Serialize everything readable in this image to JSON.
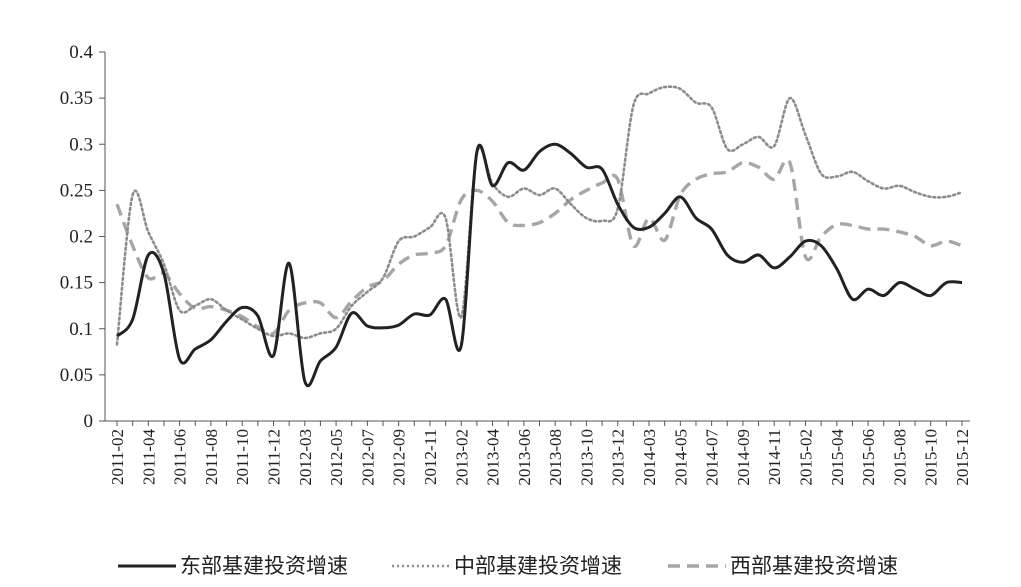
{
  "chart_data": {
    "type": "line",
    "title": "",
    "xlabel": "",
    "ylabel": "",
    "ylim": [
      0,
      0.4
    ],
    "yticks": [
      "0",
      "0.05",
      "0.1",
      "0.15",
      "0.2",
      "0.25",
      "0.3",
      "0.35",
      "0.4"
    ],
    "grid": false,
    "legend_position": "bottom",
    "x_tick_labels": [
      "2011-02",
      "2011-04",
      "2011-06",
      "2011-08",
      "2011-10",
      "2011-12",
      "2012-03",
      "2012-05",
      "2012-07",
      "2012-09",
      "2012-11",
      "2013-02",
      "2013-04",
      "2013-06",
      "2013-08",
      "2013-10",
      "2013-12",
      "2014-03",
      "2014-05",
      "2014-07",
      "2014-09",
      "2014-11",
      "2015-02",
      "2015-04",
      "2015-06",
      "2015-08",
      "2015-10",
      "2015-12"
    ],
    "x": [
      "2011-02",
      "2011-03",
      "2011-04",
      "2011-05",
      "2011-06",
      "2011-07",
      "2011-08",
      "2011-09",
      "2011-10",
      "2011-11",
      "2011-12",
      "2012-02",
      "2012-03",
      "2012-04",
      "2012-05",
      "2012-06",
      "2012-07",
      "2012-08",
      "2012-09",
      "2012-10",
      "2012-11",
      "2012-12",
      "2013-02",
      "2013-03",
      "2013-04",
      "2013-05",
      "2013-06",
      "2013-07",
      "2013-08",
      "2013-09",
      "2013-10",
      "2013-11",
      "2013-12",
      "2014-02",
      "2014-03",
      "2014-04",
      "2014-05",
      "2014-06",
      "2014-07",
      "2014-08",
      "2014-09",
      "2014-10",
      "2014-11",
      "2014-12",
      "2015-02",
      "2015-03",
      "2015-04",
      "2015-05",
      "2015-06",
      "2015-07",
      "2015-08",
      "2015-09",
      "2015-10",
      "2015-11",
      "2015-12"
    ],
    "series": [
      {
        "name": "东部基建投资增速",
        "style": "solid",
        "color": "#222222",
        "values": [
          0.092,
          0.11,
          0.18,
          0.16,
          0.067,
          0.078,
          0.088,
          0.108,
          0.123,
          0.114,
          0.071,
          0.171,
          0.043,
          0.065,
          0.08,
          0.117,
          0.103,
          0.101,
          0.104,
          0.116,
          0.115,
          0.132,
          0.082,
          0.292,
          0.255,
          0.28,
          0.272,
          0.292,
          0.3,
          0.29,
          0.275,
          0.273,
          0.235,
          0.21,
          0.21,
          0.225,
          0.243,
          0.22,
          0.208,
          0.18,
          0.172,
          0.18,
          0.166,
          0.178,
          0.195,
          0.19,
          0.165,
          0.132,
          0.143,
          0.136,
          0.15,
          0.143,
          0.136,
          0.15,
          0.15
        ]
      },
      {
        "name": "中部基建投资增速",
        "style": "dotted",
        "color": "#8c8c8c",
        "values": [
          0.083,
          0.245,
          0.205,
          0.17,
          0.12,
          0.125,
          0.132,
          0.12,
          0.11,
          0.1,
          0.092,
          0.095,
          0.09,
          0.095,
          0.1,
          0.125,
          0.14,
          0.155,
          0.195,
          0.2,
          0.21,
          0.22,
          0.113,
          0.29,
          0.257,
          0.243,
          0.252,
          0.245,
          0.252,
          0.235,
          0.22,
          0.217,
          0.23,
          0.342,
          0.355,
          0.362,
          0.36,
          0.345,
          0.34,
          0.295,
          0.3,
          0.308,
          0.298,
          0.35,
          0.31,
          0.268,
          0.265,
          0.27,
          0.26,
          0.252,
          0.255,
          0.248,
          0.243,
          0.243,
          0.248
        ]
      },
      {
        "name": "西部基建投资增速",
        "style": "dashed",
        "color": "#a6a6a6",
        "values": [
          0.235,
          0.19,
          0.155,
          0.16,
          0.138,
          0.122,
          0.124,
          0.12,
          0.113,
          0.102,
          0.095,
          0.12,
          0.128,
          0.128,
          0.112,
          0.13,
          0.145,
          0.152,
          0.17,
          0.18,
          0.182,
          0.19,
          0.24,
          0.25,
          0.238,
          0.215,
          0.212,
          0.215,
          0.225,
          0.24,
          0.25,
          0.258,
          0.262,
          0.19,
          0.22,
          0.196,
          0.245,
          0.262,
          0.268,
          0.27,
          0.28,
          0.275,
          0.262,
          0.28,
          0.178,
          0.2,
          0.213,
          0.212,
          0.208,
          0.208,
          0.205,
          0.2,
          0.19,
          0.195,
          0.19
        ]
      }
    ]
  }
}
